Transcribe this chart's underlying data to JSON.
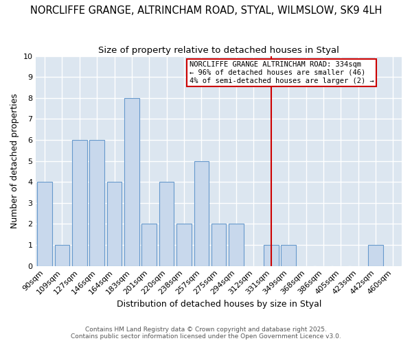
{
  "title": "NORCLIFFE GRANGE, ALTRINCHAM ROAD, STYAL, WILMSLOW, SK9 4LH",
  "subtitle": "Size of property relative to detached houses in Styal",
  "xlabel": "Distribution of detached houses by size in Styal",
  "ylabel": "Number of detached properties",
  "categories": [
    "90sqm",
    "109sqm",
    "127sqm",
    "146sqm",
    "164sqm",
    "183sqm",
    "201sqm",
    "220sqm",
    "238sqm",
    "257sqm",
    "275sqm",
    "294sqm",
    "312sqm",
    "331sqm",
    "349sqm",
    "368sqm",
    "386sqm",
    "405sqm",
    "423sqm",
    "442sqm",
    "460sqm"
  ],
  "values": [
    4,
    1,
    6,
    6,
    4,
    8,
    2,
    4,
    2,
    5,
    2,
    2,
    0,
    1,
    1,
    0,
    0,
    0,
    0,
    1,
    0
  ],
  "bar_color": "#c8d8ec",
  "bar_edge_color": "#6699cc",
  "fig_background": "#ffffff",
  "axes_background": "#dce6f0",
  "grid_color": "#ffffff",
  "red_line_x": 13.0,
  "annotation_text": "NORCLIFFE GRANGE ALTRINCHAM ROAD: 334sqm\n← 96% of detached houses are smaller (46)\n4% of semi-detached houses are larger (2) →",
  "annotation_box_color": "#ffffff",
  "annotation_border_color": "#cc0000",
  "ylim": [
    0,
    10
  ],
  "yticks": [
    0,
    1,
    2,
    3,
    4,
    5,
    6,
    7,
    8,
    9,
    10
  ],
  "red_line_color": "#cc0000",
  "title_fontsize": 10.5,
  "subtitle_fontsize": 9.5,
  "ylabel_fontsize": 9,
  "xlabel_fontsize": 9,
  "tick_fontsize": 8,
  "annotation_fontsize": 7.5,
  "footer_fontsize": 6.5,
  "footer_text": "Contains HM Land Registry data © Crown copyright and database right 2025.\nContains public sector information licensed under the Open Government Licence v3.0."
}
